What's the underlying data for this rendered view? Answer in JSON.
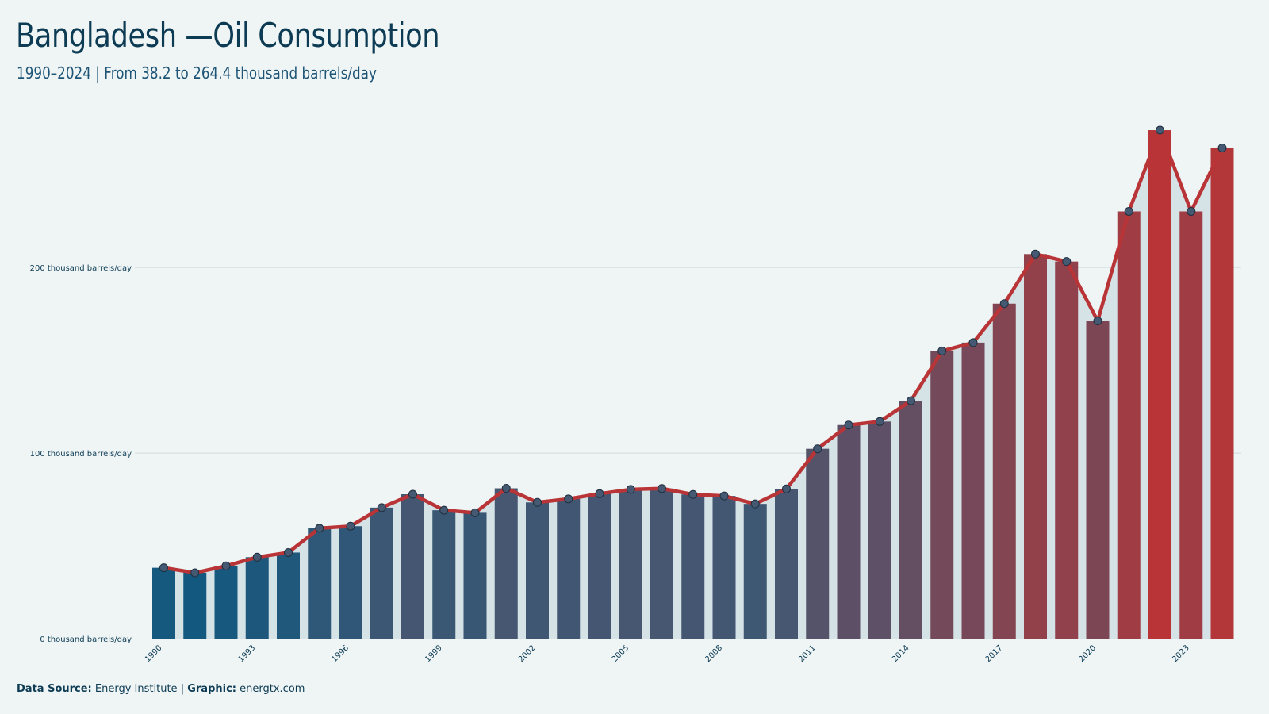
{
  "title": "Bangladesh —Oil Consumption",
  "subtitle": "1990–2024 | From 38.2 to 264.4 thousand barrels/day",
  "footer": {
    "source_label": "Data Source:",
    "source_value": "Energy Institute",
    "separator": "|",
    "graphic_label": "Graphic:",
    "graphic_value": "energtx.com"
  },
  "colors": {
    "background": "#eff5f5",
    "bar_low": "#13597f",
    "bar_mid": "#4a5670",
    "bar_high": "#b93436",
    "line": "#b93436",
    "marker": "#455a72",
    "area": "#d5e2e6",
    "grid": "#cfdadd"
  },
  "chart_data": {
    "type": "bar",
    "title": "Bangladesh —Oil Consumption",
    "subtitle": "1990–2024 | From 38.2 to 264.4 thousand barrels/day",
    "categories": [
      "1990",
      "1991",
      "1992",
      "1993",
      "1994",
      "1995",
      "1996",
      "1997",
      "1998",
      "1999",
      "2000",
      "2001",
      "2002",
      "2003",
      "2004",
      "2005",
      "2006",
      "2007",
      "2008",
      "2009",
      "2010",
      "2011",
      "2012",
      "2013",
      "2014",
      "2015",
      "2016",
      "2017",
      "2018",
      "2019",
      "2020",
      "2021",
      "2022",
      "2023",
      "2024"
    ],
    "x_tick_labels": [
      "1990",
      "1993",
      "1996",
      "1999",
      "2002",
      "2005",
      "2008",
      "2011",
      "2014",
      "2017",
      "2020",
      "2023"
    ],
    "values": [
      38.2,
      35.5,
      39.2,
      43.9,
      46.4,
      59.5,
      60.6,
      70.6,
      77.8,
      69.2,
      67.8,
      81.0,
      73.4,
      75.3,
      78.1,
      80.4,
      80.9,
      77.7,
      76.9,
      72.6,
      80.7,
      102.3,
      115.1,
      117.0,
      128.2,
      155.0,
      159.5,
      180.5,
      207.2,
      203.2,
      171.2,
      230.2,
      274.0,
      230.2,
      264.4
    ],
    "y_ticks": [
      0,
      100,
      200
    ],
    "y_tick_labels": [
      "0 thousand barrels/day",
      "100 thousand barrels/day",
      "200 thousand barrels/day"
    ],
    "ylim": [
      0,
      280
    ],
    "xlabel": "",
    "ylabel": "",
    "overlay": "line-with-markers",
    "grid": "horizontal"
  }
}
